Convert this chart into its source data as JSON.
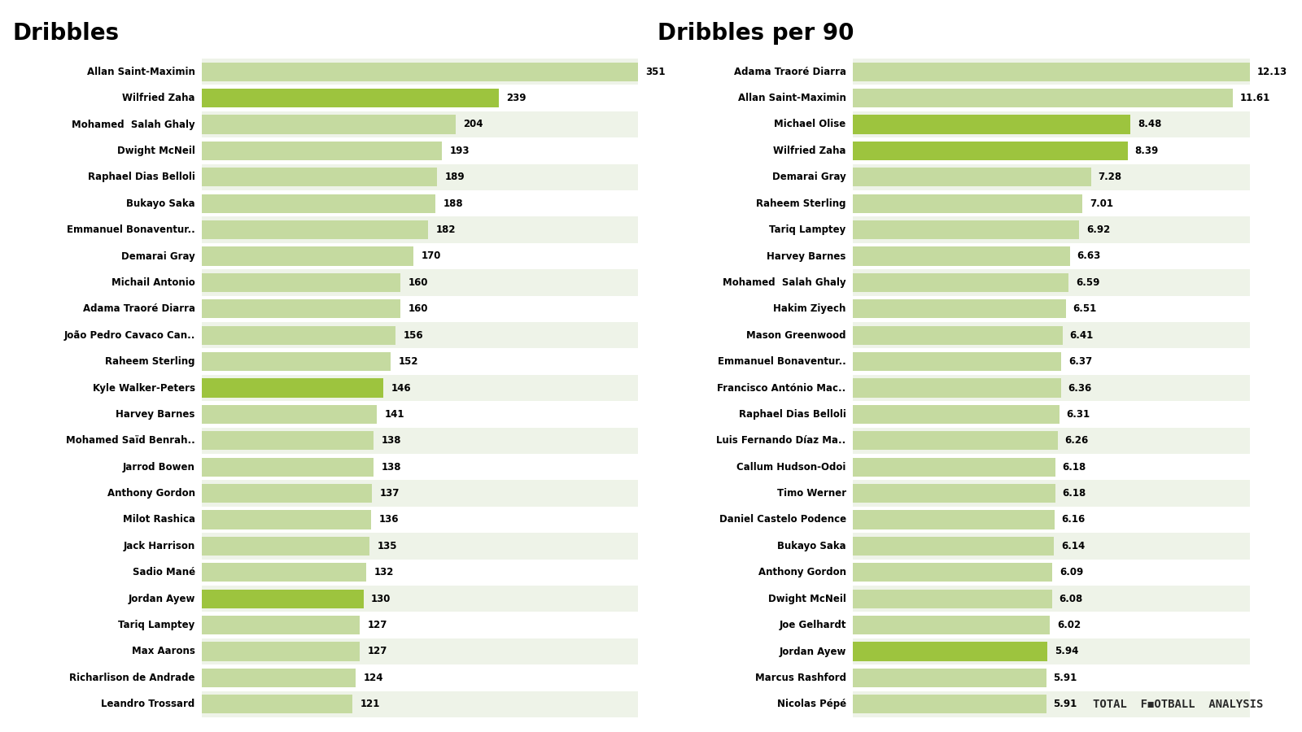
{
  "left_title": "Dribbles",
  "right_title": "Dribbles per 90",
  "left_players": [
    "Allan Saint-Maximin",
    "Wilfried Zaha",
    "Mohamed  Salah Ghaly",
    "Dwight McNeil",
    "Raphael Dias Belloli",
    "Bukayo Saka",
    "Emmanuel Bonaventur..",
    "Demarai Gray",
    "Michail Antonio",
    "Adama Traoré Diarra",
    "João Pedro Cavaco Can..",
    "Raheem Sterling",
    "Kyle Walker-Peters",
    "Harvey Barnes",
    "Mohamed Saïd Benrah..",
    "Jarrod Bowen",
    "Anthony Gordon",
    "Milot Rashica",
    "Jack Harrison",
    "Sadio Mané",
    "Jordan Ayew",
    "Tariq Lamptey",
    "Max Aarons",
    "Richarlison de Andrade",
    "Leandro Trossard"
  ],
  "left_values": [
    351,
    239,
    204,
    193,
    189,
    188,
    182,
    170,
    160,
    160,
    156,
    152,
    146,
    141,
    138,
    138,
    137,
    136,
    135,
    132,
    130,
    127,
    127,
    124,
    121
  ],
  "right_players": [
    "Adama Traoré Diarra",
    "Allan Saint-Maximin",
    "Michael Olise",
    "Wilfried Zaha",
    "Demarai Gray",
    "Raheem Sterling",
    "Tariq Lamptey",
    "Harvey Barnes",
    "Mohamed  Salah Ghaly",
    "Hakim Ziyech",
    "Mason Greenwood",
    "Emmanuel Bonaventur..",
    "Francisco António Mac..",
    "Raphael Dias Belloli",
    "Luis Fernando Díaz Ma..",
    "Callum Hudson-Odoi",
    "Timo Werner",
    "Daniel Castelo Podence",
    "Bukayo Saka",
    "Anthony Gordon",
    "Dwight McNeil",
    "Joe Gelhardt",
    "Jordan Ayew",
    "Marcus Rashford",
    "Nicolas Pépé"
  ],
  "right_values": [
    12.13,
    11.61,
    8.48,
    8.39,
    7.28,
    7.01,
    6.92,
    6.63,
    6.59,
    6.51,
    6.41,
    6.37,
    6.36,
    6.31,
    6.26,
    6.18,
    6.18,
    6.16,
    6.14,
    6.09,
    6.08,
    6.02,
    5.94,
    5.91,
    5.91
  ],
  "cp_players": [
    "Wilfried Zaha",
    "Michael Olise",
    "Jordan Ayew",
    "Kyle Walker-Peters"
  ],
  "bar_color_normal": "#c5daa0",
  "bar_color_highlight": "#9dc43e",
  "row_color_even": "#eef3e8",
  "row_color_odd": "#ffffff",
  "bg_color": "#ffffff",
  "text_color": "#000000",
  "title_fontsize": 20,
  "label_fontsize": 8.5,
  "value_fontsize": 8.5,
  "tfa_text": "TOTAL  F◼OTBALL  ANALYSIS"
}
